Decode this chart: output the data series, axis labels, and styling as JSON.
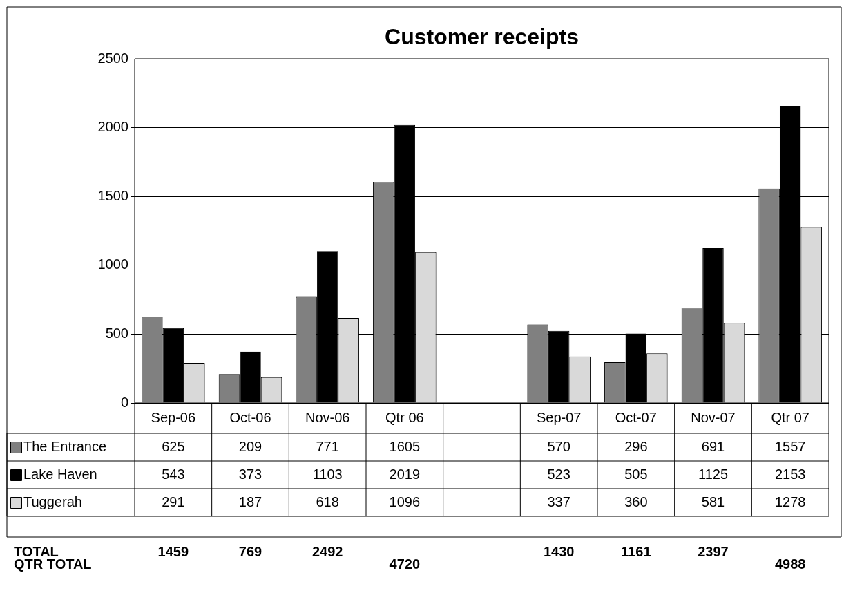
{
  "chart_data": {
    "type": "bar",
    "title": "Customer receipts",
    "categories": [
      "Sep-06",
      "Oct-06",
      "Nov-06",
      "Qtr 06",
      null,
      "Sep-07",
      "Oct-07",
      "Nov-07",
      "Qtr 07"
    ],
    "series": [
      {
        "name": "The Entrance",
        "color": "#808080",
        "values": [
          625,
          209,
          771,
          1605,
          null,
          570,
          296,
          691,
          1557
        ]
      },
      {
        "name": "Lake Haven",
        "color": "#000000",
        "values": [
          543,
          373,
          1103,
          2019,
          null,
          523,
          505,
          1125,
          2153
        ]
      },
      {
        "name": "Tuggerah",
        "color": "#d9d9d9",
        "values": [
          291,
          187,
          618,
          1096,
          null,
          337,
          360,
          581,
          1278
        ]
      }
    ],
    "ylim": [
      0,
      2500
    ],
    "yticks": [
      0,
      500,
      1000,
      1500,
      2000,
      2500
    ],
    "grid": "y",
    "legend": "bottom",
    "data_labels": true,
    "annotations": [
      "TOTAL\t1459\t769\t2492\t\t\t1430\t1161\t2397\t",
      "QTR TOTAL\t\t\t\t4720\t\t\t\t\t4988"
    ]
  }
}
